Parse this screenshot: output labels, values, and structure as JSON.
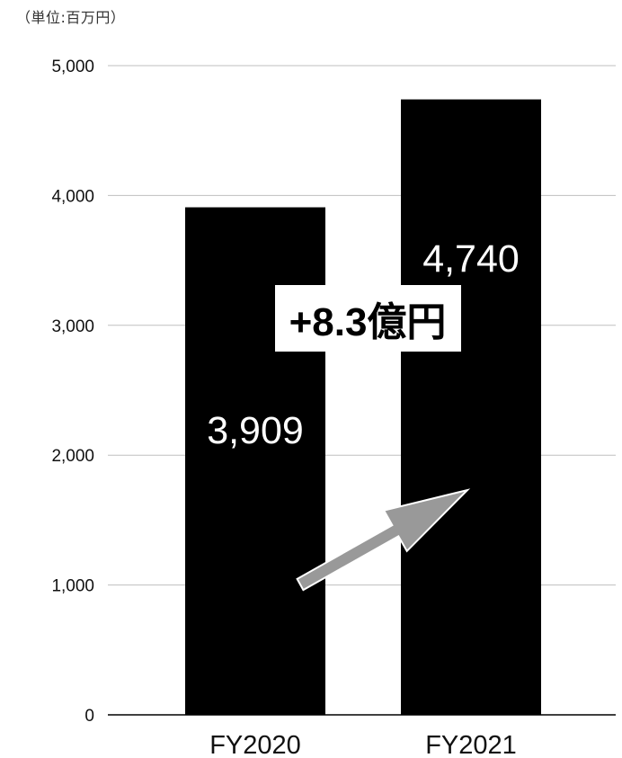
{
  "unit_label": "（単位:百万円）",
  "annotation": "+8.3億円",
  "chart_data": {
    "type": "bar",
    "categories": [
      "FY2020",
      "FY2021"
    ],
    "values": [
      3909,
      4740
    ],
    "data_labels": [
      "3,909",
      "4,740"
    ],
    "yticks": [
      0,
      1000,
      2000,
      3000,
      4000,
      5000
    ],
    "ytick_labels": [
      "0",
      "1,000",
      "2,000",
      "3,000",
      "4,000",
      "5,000"
    ],
    "ylim": [
      0,
      5000
    ],
    "grid": true,
    "title": "",
    "xlabel": "",
    "ylabel": ""
  },
  "colors": {
    "bar": "#000000",
    "grid": "#bfbfbf",
    "axis": "#000000",
    "arrow": "#999999"
  }
}
